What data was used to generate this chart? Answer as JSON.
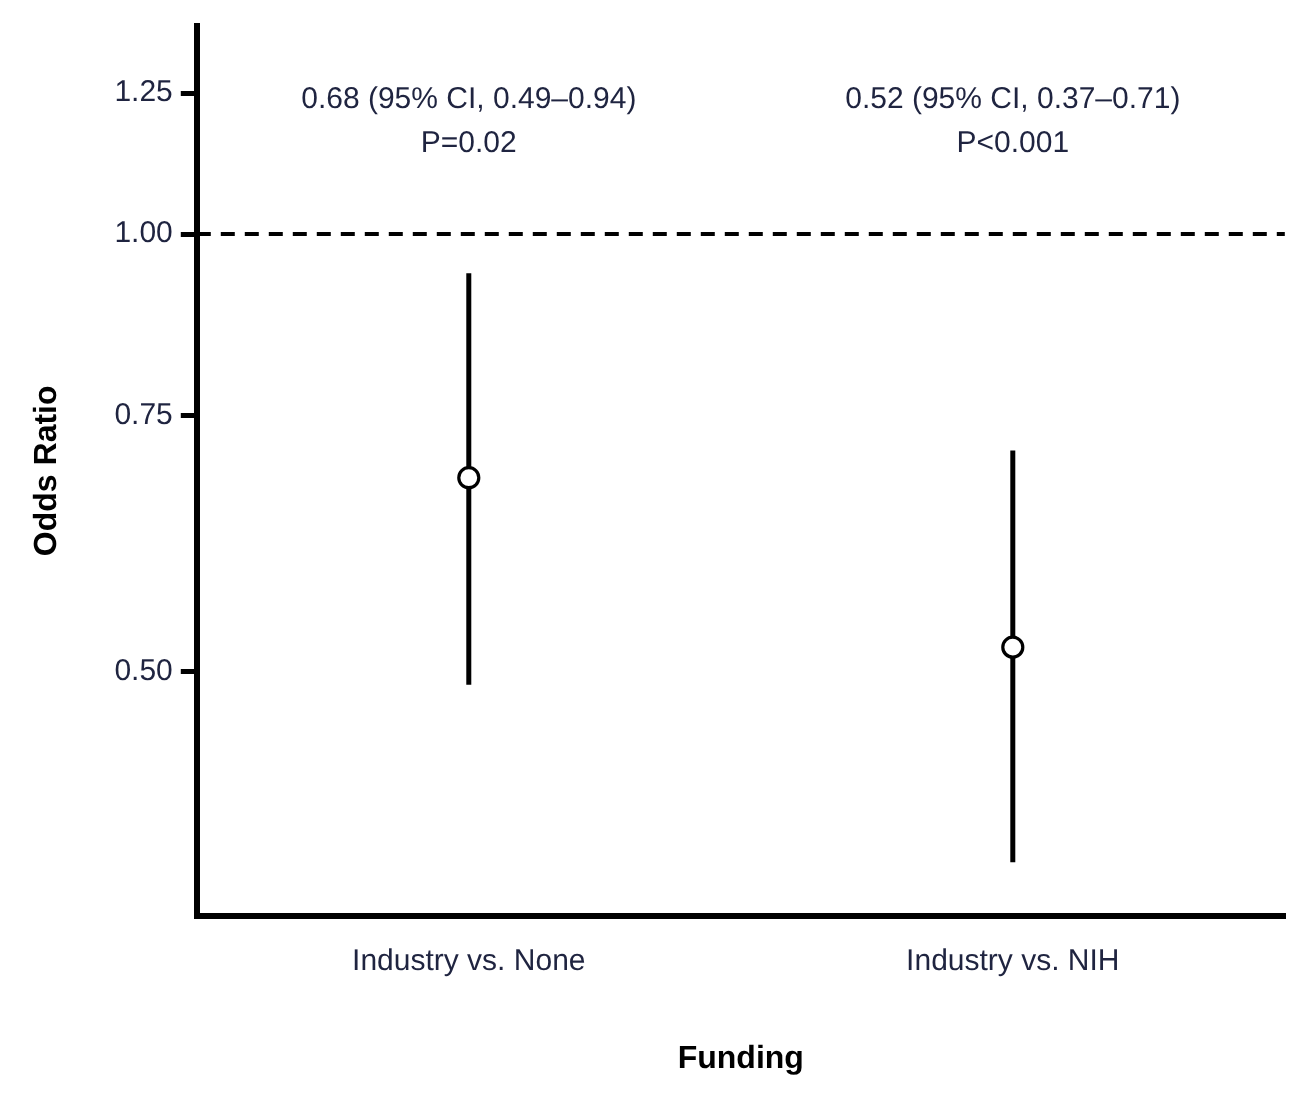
{
  "chart_data": {
    "type": "scatter",
    "xlabel": "Funding",
    "ylabel": "Odds Ratio",
    "categories": [
      "Industry vs. None",
      "Industry vs. NIH"
    ],
    "values": [
      0.68,
      0.52
    ],
    "errors": [
      [
        0.49,
        0.94
      ],
      [
        0.37,
        0.71
      ]
    ],
    "color": "#000000",
    "marker": "circle",
    "log": "y",
    "ylim": [
      0.34,
      1.39
    ],
    "yticks": [
      {
        "value": 0.5,
        "label": "0.50"
      },
      {
        "value": 0.75,
        "label": "0.75"
      },
      {
        "value": 1,
        "label": "1.00"
      },
      {
        "value": 1.25,
        "label": "1.25"
      }
    ],
    "ref_lines": [
      {
        "axis": "y",
        "value": 1,
        "line_style": "dashed",
        "color": "#000000"
      }
    ],
    "annotations": [
      "0.68 (95% CI, 0.49–0.94)\nP=0.02",
      "0.52 (95% CI, 0.37–0.71)\nP<0.001"
    ],
    "grid": false,
    "legend": false
  }
}
